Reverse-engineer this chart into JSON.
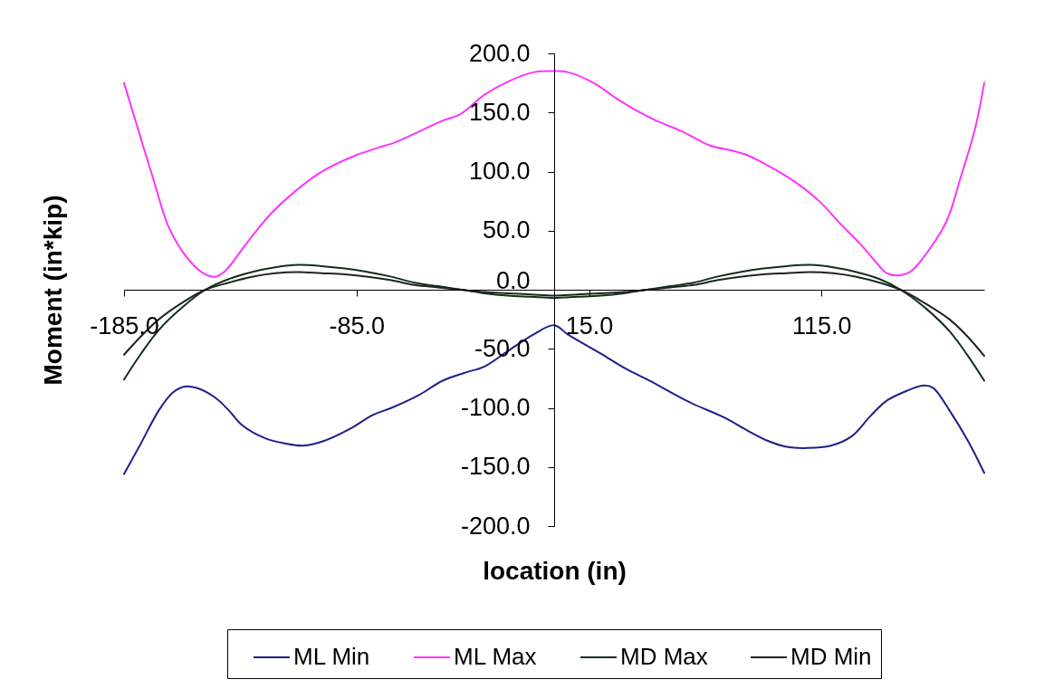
{
  "chart_data": {
    "type": "line",
    "xlabel": "location (in)",
    "ylabel": "Moment (in*kip)",
    "xlim": [
      -185,
      185
    ],
    "ylim": [
      -200,
      200
    ],
    "xticks": [
      {
        "value": -185,
        "label": "-185.0"
      },
      {
        "value": -85,
        "label": "-85.0"
      },
      {
        "value": 15,
        "label": "15.0"
      },
      {
        "value": 115,
        "label": "115.0"
      }
    ],
    "yticks": [
      {
        "value": -200,
        "label": "-200.0"
      },
      {
        "value": -150,
        "label": "-150.0"
      },
      {
        "value": -100,
        "label": "-100.0"
      },
      {
        "value": -50,
        "label": "-50.0"
      },
      {
        "value": 0,
        "label": "0.0"
      },
      {
        "value": 50,
        "label": "50.0"
      },
      {
        "value": 100,
        "label": "100.0"
      },
      {
        "value": 150,
        "label": "150.0"
      },
      {
        "value": 200,
        "label": "200.0"
      }
    ],
    "legend": "bottom",
    "line_style": "solid",
    "series": [
      {
        "name": "ML Min",
        "color": "#1f1f8c",
        "x": [
          -185,
          -178,
          -170,
          -164,
          -159,
          -154,
          -146,
          -140,
          -134,
          -124,
          -116,
          -108,
          -99,
          -88,
          -78,
          -70,
          -58,
          -48,
          -38,
          -30,
          -20,
          -9,
          0,
          6,
          20,
          30,
          41,
          58,
          73,
          83,
          92,
          100,
          109,
          119,
          128,
          136,
          143,
          150,
          159,
          163,
          170,
          178,
          185
        ],
        "values": [
          -156,
          -131,
          -102,
          -87,
          -82,
          -83,
          -91,
          -102,
          -115,
          -126,
          -130,
          -132,
          -128,
          -118,
          -106,
          -100,
          -89,
          -77,
          -70,
          -65,
          -52,
          -38,
          -30,
          -38,
          -54,
          -66,
          -77,
          -95,
          -108,
          -119,
          -128,
          -133,
          -134,
          -132,
          -124,
          -107,
          -94,
          -87,
          -81,
          -83,
          -102,
          -128,
          -155
        ]
      },
      {
        "name": "ML Max",
        "color": "#ff33ff",
        "x": [
          -185,
          -179,
          -172,
          -166,
          -159,
          -151,
          -146,
          -142,
          -132,
          -122,
          -111,
          -99,
          -85,
          -76,
          -68,
          -58,
          -48,
          -40,
          -30,
          -20,
          -9,
          0,
          6,
          17,
          26,
          36,
          44,
          55,
          67,
          76,
          83,
          92,
          103,
          114,
          123,
          132,
          139,
          143,
          147,
          153,
          161,
          169,
          175,
          181,
          185
        ],
        "values": [
          175,
          136,
          91,
          54,
          30,
          14,
          11,
          15,
          40,
          64,
          84,
          101,
          114,
          120,
          125,
          134,
          143,
          149,
          165,
          176,
          184,
          185,
          184,
          175,
          163,
          151,
          143,
          134,
          122,
          118,
          114,
          105,
          92,
          75,
          56,
          38,
          22,
          14,
          12,
          15,
          33,
          59,
          96,
          136,
          175
        ]
      },
      {
        "name": "MD Max",
        "color": "#123018",
        "x": [
          -185,
          -178,
          -170,
          -160,
          -150,
          -140,
          -130,
          -120,
          -110,
          -100,
          -90,
          -80,
          -70,
          -60,
          -50,
          -40,
          -30,
          -20,
          -10,
          0,
          10,
          20,
          30,
          40,
          50,
          60,
          70,
          80,
          90,
          100,
          110,
          120,
          130,
          140,
          149,
          160,
          170,
          178,
          185
        ],
        "values": [
          -76,
          -55,
          -34,
          -15,
          0,
          9,
          15,
          19,
          21,
          20,
          18,
          15,
          11,
          6,
          3,
          0,
          -3,
          -5,
          -6,
          -7,
          -6,
          -5,
          -3,
          0,
          3,
          6,
          11,
          15,
          18,
          20,
          21,
          19,
          15,
          9,
          0,
          -16,
          -35,
          -56,
          -77
        ]
      },
      {
        "name": "MD Min",
        "color": "#1c261e",
        "x": [
          -185,
          -178,
          -170,
          -160,
          -150,
          -140,
          -130,
          -120,
          -110,
          -100,
          -90,
          -80,
          -70,
          -60,
          -50,
          -40,
          -30,
          -20,
          -10,
          0,
          10,
          20,
          30,
          40,
          50,
          60,
          70,
          80,
          90,
          100,
          110,
          120,
          130,
          140,
          149,
          160,
          170,
          178,
          185
        ],
        "values": [
          -55,
          -40,
          -25,
          -11,
          0,
          6,
          11,
          14,
          15,
          14,
          13,
          11,
          8,
          4,
          2,
          0,
          -2,
          -3,
          -4,
          -5,
          -4,
          -3,
          -2,
          0,
          2,
          4,
          8,
          11,
          13,
          14,
          15,
          14,
          11,
          6,
          0,
          -12,
          -25,
          -40,
          -56
        ]
      }
    ]
  }
}
